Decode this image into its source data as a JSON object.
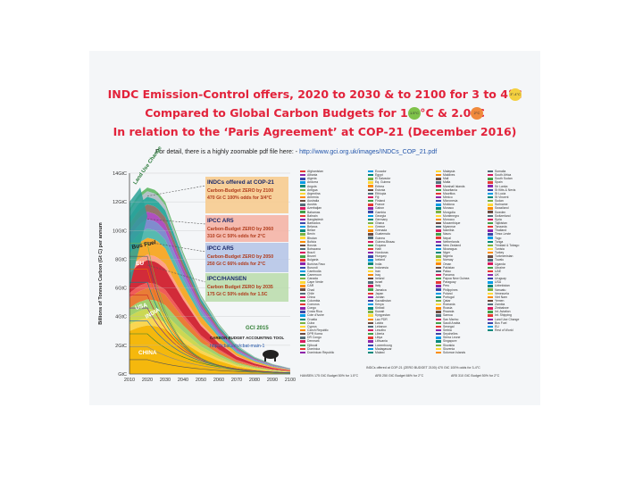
{
  "titles": {
    "line1": "INDC Emission-Control offers, 2020 to 2030 & to 2100 for 3 to 4°C",
    "line2": "Compared to Global Carbon Budgets for 1.5°C      & 2.0°C",
    "line3": "In relation to the ‘Paris Agreement’ at COP-21 (December 2016)"
  },
  "badges": {
    "b34": "3°-4°C",
    "b15": "1.5°C",
    "b20": "2°C"
  },
  "detail": {
    "text": "For detail, there is a highly zoomable pdf file here: -",
    "link": "http://www.gci.org.uk/images/INDCs_COP_21.pdf"
  },
  "colors": {
    "title": "#e2233b",
    "china": "#f4b400",
    "usa": "#d0202e",
    "eu": "#f5a623",
    "india": "#e8762b",
    "budget_box_indc": "#f7c98a",
    "budget_box_ar5_2": "#f4b0a2",
    "budget_box_ar5_3": "#b3c3e6",
    "budget_box_hansen": "#b9dcaa"
  },
  "chart_data": {
    "type": "area",
    "ylabel": "Billions of Tonnes Carbon (Gt C) per annum",
    "ylim": [
      0,
      14
    ],
    "ytick_labels": [
      "14GtC",
      "12GtC",
      "10GtC",
      "8GtC",
      "6GtC",
      "4GtC",
      "2GtC",
      "GtC"
    ],
    "ytick_values": [
      14,
      12,
      10,
      8,
      6,
      4,
      2,
      0
    ],
    "xlim": [
      2010,
      2100
    ],
    "xtick_labels": [
      "2010",
      "2020",
      "2030",
      "2040",
      "2050",
      "2060",
      "2070",
      "2080",
      "2090",
      "2100"
    ],
    "xtick_values": [
      2010,
      2020,
      2030,
      2040,
      2050,
      2060,
      2070,
      2080,
      2090,
      2100
    ],
    "series_labels": [
      "Land Use Change",
      "Bus Fuel",
      "EU",
      "USA",
      "INDIA",
      "CHINA"
    ],
    "total_emissions": {
      "x": [
        2010,
        2015,
        2020,
        2025,
        2030,
        2040,
        2050,
        2060,
        2070,
        2080,
        2090,
        2100
      ],
      "y": [
        11.5,
        12.5,
        13.0,
        12.8,
        12.0,
        8.5,
        5.5,
        3.5,
        2.0,
        1.2,
        0.7,
        0.4
      ]
    },
    "budget_lines": [
      {
        "title": "INDCs offered at COP-21",
        "line1": "Carbon-Budget ZERO by 2100",
        "line2": "470 Gt C 100% odds for 3/4°C",
        "zero_year": 2100
      },
      {
        "title": "IPCC AR5",
        "line1": "Carbon-Budget ZERO by 2060",
        "line2": "310 Gt C 50% odds for 2°C",
        "zero_year": 2060
      },
      {
        "title": "IPCC AR5",
        "line1": "Carbon-Budget ZERO by 2050",
        "line2": "250 Gt C 66% odds for 2°C",
        "zero_year": 2050
      },
      {
        "title": "IPCC/HANSEN",
        "line1": "Carbon Budget ZERO by 2035",
        "line2": "175 Gt C 50% odds for 1.5C",
        "zero_year": 2035
      }
    ],
    "annotations": {
      "gci": "GCI  2015",
      "tool": "CARBON BUDGET ACCOUNTING TOOL",
      "url": "http://cbat.info/cbat-main-1"
    }
  },
  "legend": {
    "col1": [
      "Afghanistan",
      "Albania",
      "Algeria",
      "Andorra",
      "Angola",
      "Antigua",
      "Argentina",
      "Armenia",
      "Australia",
      "Austria",
      "Azerbaijan",
      "Bahamas",
      "Bahrain",
      "Bangladesh",
      "Barbados",
      "Belarus",
      "Belize",
      "Benin",
      "Bhutan",
      "Bolivia",
      "Bosnia",
      "Botswana",
      "Brazil",
      "Brunei",
      "Bulgaria",
      "Burkina Faso",
      "Burundi",
      "Cambodia",
      "Cameroon",
      "Canada",
      "Cape Verde",
      "CAR",
      "Chad",
      "Chile",
      "China",
      "Colombia",
      "Comoros",
      "Congo",
      "Costa Rica",
      "Cote d'Ivoire",
      "Croatia",
      "Cuba",
      "Cyprus",
      "Czech Republic",
      "DPR Korea",
      "DR Congo",
      "Denmark",
      "Djibouti",
      "Dominica",
      "Dominican Republic"
    ],
    "col2": [
      "Ecuador",
      "Egypt",
      "El Salvador",
      "Eq. Guinea",
      "Eritrea",
      "Estonia",
      "Ethiopia",
      "Fiji",
      "Finland",
      "France",
      "Gabon",
      "Gambia",
      "Georgia",
      "Germany",
      "Ghana",
      "Greece",
      "Grenada",
      "Guatemala",
      "Guinea",
      "Guinea-Bissau",
      "Guyana",
      "Haiti",
      "Honduras",
      "Hungary",
      "Iceland",
      "India",
      "Indonesia",
      "Iran",
      "Iraq",
      "Ireland",
      "Israel",
      "Italy",
      "Jamaica",
      "Japan",
      "Jordan",
      "Kazakhstan",
      "Kenya",
      "Kiribati",
      "Kuwait",
      "Kyrgyzstan",
      "Lao PDR",
      "Latvia",
      "Lebanon",
      "Lesotho",
      "Liberia",
      "Libya",
      "Lithuania",
      "Luxembourg",
      "Madagascar",
      "Malawi"
    ],
    "col3": [
      "Malaysia",
      "Maldives",
      "Mali",
      "Malta",
      "Marshall Islands",
      "Mauritania",
      "Mauritius",
      "Mexico",
      "Micronesia",
      "Moldova",
      "Monaco",
      "Mongolia",
      "Montenegro",
      "Morocco",
      "Mozambique",
      "Myanmar",
      "Namibia",
      "Nauru",
      "Nepal",
      "Netherlands",
      "New Zealand",
      "Nicaragua",
      "Niger",
      "Nigeria",
      "Norway",
      "Oman",
      "Pakistan",
      "Palau",
      "Panama",
      "Papua New Guinea",
      "Paraguay",
      "Peru",
      "Philippines",
      "Poland",
      "Portugal",
      "Qatar",
      "Romania",
      "Russia",
      "Rwanda",
      "Samoa",
      "San Marino",
      "Saudi Arabia",
      "Senegal",
      "Serbia",
      "Seychelles",
      "Sierra Leone",
      "Singapore",
      "Slovakia",
      "Slovenia",
      "Solomon Islands"
    ],
    "col4": [
      "Somalia",
      "South Africa",
      "South Sudan",
      "Spain",
      "Sri Lanka",
      "St Kitts & Nevis",
      "St Lucia",
      "St Vincent",
      "Sudan",
      "Suriname",
      "Swaziland",
      "Sweden",
      "Switzerland",
      "Syria",
      "Tajikistan",
      "Tanzania",
      "Thailand",
      "Timor-Leste",
      "Togo",
      "Tonga",
      "Trinidad & Tobago",
      "Tunisia",
      "Turkey",
      "Turkmenistan",
      "Tuvalu",
      "Uganda",
      "Ukraine",
      "UAE",
      "UK",
      "Uruguay",
      "USA",
      "Uzbekistan",
      "Vanuatu",
      "Venezuela",
      "Viet Nam",
      "Yemen",
      "Zambia",
      "Zimbabwe",
      "Int. Aviation",
      "Int. Shipping",
      "Land Use Change",
      "Bus Fuel",
      "EU",
      "Rest of World"
    ],
    "footer": {
      "main": "INDCs offered at COP-21 (ZERO BUDGET 2100) 470 GtC 100% odds for 3-4°C",
      "f1": "HANSEN 175 GtC Budget 50% for 1.5°C",
      "f2": "AR5 250 GtC Budget 66% for 2°C",
      "f3": "AR5 310 GtC Budget 50% for 2°C"
    }
  }
}
